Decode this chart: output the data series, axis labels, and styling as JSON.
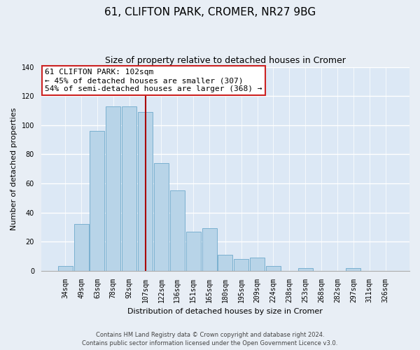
{
  "title": "61, CLIFTON PARK, CROMER, NR27 9BG",
  "subtitle": "Size of property relative to detached houses in Cromer",
  "xlabel": "Distribution of detached houses by size in Cromer",
  "ylabel": "Number of detached properties",
  "categories": [
    "34sqm",
    "49sqm",
    "63sqm",
    "78sqm",
    "92sqm",
    "107sqm",
    "122sqm",
    "136sqm",
    "151sqm",
    "165sqm",
    "180sqm",
    "195sqm",
    "209sqm",
    "224sqm",
    "238sqm",
    "253sqm",
    "268sqm",
    "282sqm",
    "297sqm",
    "311sqm",
    "326sqm"
  ],
  "values": [
    3,
    32,
    96,
    113,
    113,
    109,
    74,
    55,
    27,
    29,
    11,
    8,
    9,
    3,
    0,
    2,
    0,
    0,
    2,
    0,
    0
  ],
  "bar_color": "#b8d4e8",
  "bar_edge_color": "#7ab0d0",
  "vline_x_index": 5,
  "vline_color": "#aa0000",
  "ylim": [
    0,
    140
  ],
  "yticks": [
    0,
    20,
    40,
    60,
    80,
    100,
    120,
    140
  ],
  "annotation_title": "61 CLIFTON PARK: 102sqm",
  "annotation_line1": "← 45% of detached houses are smaller (307)",
  "annotation_line2": "54% of semi-detached houses are larger (368) →",
  "footer_line1": "Contains HM Land Registry data © Crown copyright and database right 2024.",
  "footer_line2": "Contains public sector information licensed under the Open Government Licence v3.0.",
  "background_color": "#e8eef5",
  "plot_bg_color": "#dce8f5",
  "grid_color": "#ffffff",
  "title_fontsize": 11,
  "subtitle_fontsize": 9,
  "axis_label_fontsize": 8,
  "tick_fontsize": 7,
  "annotation_fontsize": 8
}
